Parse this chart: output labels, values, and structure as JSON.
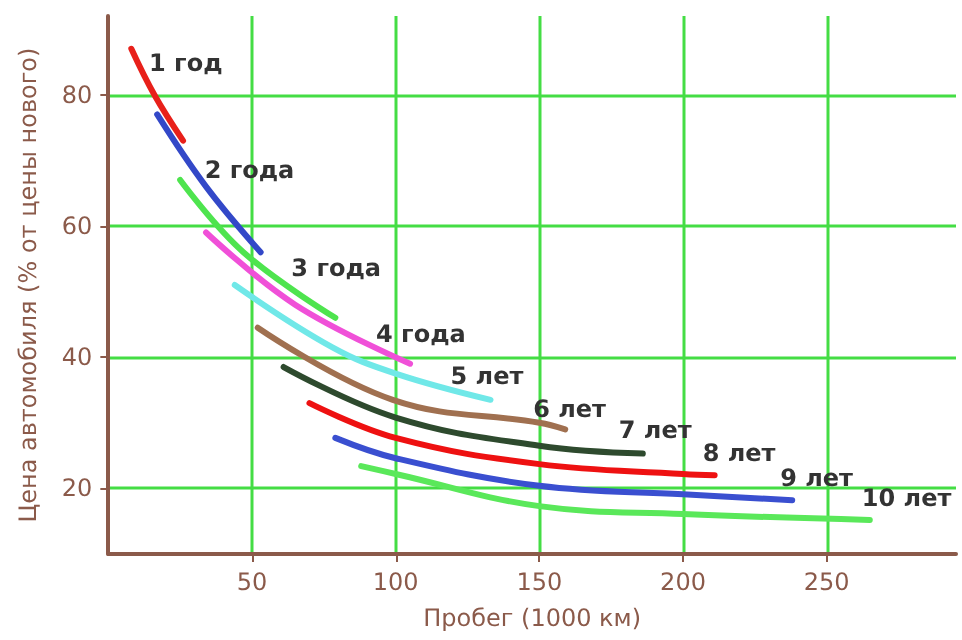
{
  "chart_data": {
    "type": "line",
    "xlabel": "Пробег (1000 км)",
    "ylabel": "Цена автомобиля (% от цены нового)",
    "xlim": [
      0,
      295
    ],
    "ylim": [
      10,
      92
    ],
    "xticks": [
      50,
      100,
      150,
      200,
      250
    ],
    "yticks": [
      20,
      40,
      60,
      80
    ],
    "grid": true,
    "marker": "none",
    "legend": false,
    "series": [
      {
        "name": "1 год",
        "color": "#e8201a",
        "x": [
          8,
          16,
          26
        ],
        "values": [
          87,
          80,
          73
        ]
      },
      {
        "name": "2 года",
        "color": "#3348c8",
        "x": [
          17,
          34,
          53
        ],
        "values": [
          77,
          66,
          56
        ]
      },
      {
        "name": "3 года",
        "color": "#4ee44e",
        "x": [
          25,
          47,
          79
        ],
        "values": [
          67,
          56,
          46
        ]
      },
      {
        "name": "4 года",
        "color": "#f050d8",
        "x": [
          34,
          65,
          105
        ],
        "values": [
          59,
          48,
          39
        ]
      },
      {
        "name": "5 лет",
        "color": "#70e8e8",
        "x": [
          44,
          78,
          100,
          133
        ],
        "values": [
          51,
          41.5,
          37.5,
          33.5
        ]
      },
      {
        "name": "6 лет",
        "color": "#a07050",
        "x": [
          52,
          99,
          150,
          159
        ],
        "values": [
          44.5,
          33.5,
          30,
          29
        ]
      },
      {
        "name": "7 лет",
        "color": "#2e4a2e",
        "x": [
          61,
          100,
          150,
          186
        ],
        "values": [
          38.5,
          30.8,
          26.5,
          25.3
        ]
      },
      {
        "name": "8 лет",
        "color": "#ee1111",
        "x": [
          70,
          100,
          150,
          200,
          211
        ],
        "values": [
          33,
          27.7,
          23.7,
          22.2,
          22
        ]
      },
      {
        "name": "9 лет",
        "color": "#3a4fd0",
        "x": [
          79,
          100,
          150,
          200,
          238
        ],
        "values": [
          27.7,
          24.6,
          20.4,
          19.1,
          18.2
        ]
      },
      {
        "name": "10 лет",
        "color": "#5ae85a",
        "x": [
          88,
          100,
          150,
          200,
          265
        ],
        "values": [
          23.4,
          22.2,
          17.3,
          16.1,
          15.2
        ]
      }
    ]
  }
}
